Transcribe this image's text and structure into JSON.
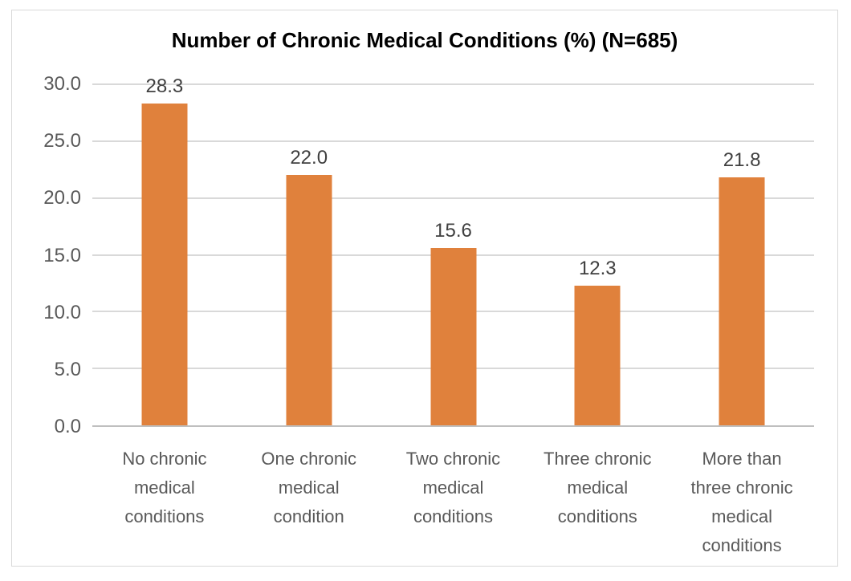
{
  "figure": {
    "background": "#FFFFFF",
    "border_color": "#D9D9D9"
  },
  "chart_data": {
    "type": "bar",
    "title": "Number of Chronic Medical Conditions (%) (N=685)",
    "categories": [
      "No chronic medical conditions",
      "One chronic medical condition",
      "Two chronic medical conditions",
      "Three chronic medical conditions",
      "More than three chronic medical conditions"
    ],
    "values": [
      28.3,
      22.0,
      15.6,
      12.3,
      21.8
    ],
    "value_labels": [
      "28.3",
      "22.0",
      "15.6",
      "12.3",
      "21.8"
    ],
    "xlabel": "",
    "ylabel": "",
    "ylim": [
      0,
      30
    ],
    "yticks": [
      0,
      5,
      10,
      15,
      20,
      25,
      30
    ],
    "ytick_labels": [
      "0.0",
      "5.0",
      "10.0",
      "15.0",
      "20.0",
      "25.0",
      "30.0"
    ],
    "grid": true,
    "legend": "none",
    "colors": {
      "bar": "#E0813C",
      "gridline": "#D9D9D9",
      "axis_line": "#BFBFBF",
      "tick_text": "#595959",
      "category_text": "#595959",
      "value_text": "#404040",
      "title_text": "#000000"
    }
  }
}
